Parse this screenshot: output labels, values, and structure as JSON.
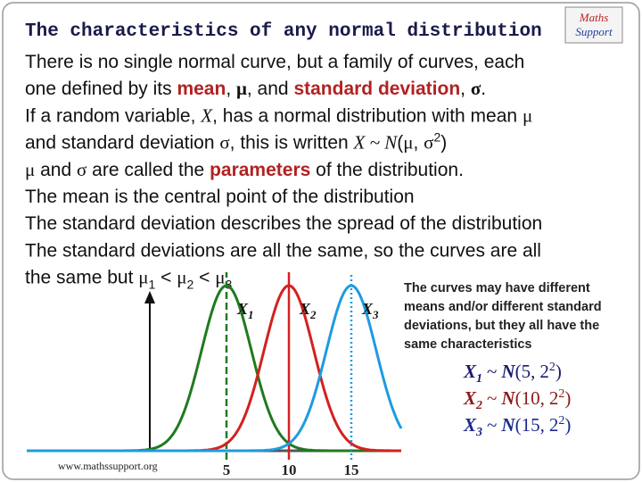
{
  "title": "The characteristics of any normal distribution",
  "logo": [
    "Maths",
    "Support"
  ],
  "lines": [
    [
      {
        "text": "There is no single normal curve, but a family of curves, each",
        "style": "plain"
      }
    ],
    [
      {
        "text": "one defined by its ",
        "style": "plain"
      },
      {
        "text": "mean",
        "style": "red"
      },
      {
        "text": ", ",
        "style": "plain"
      },
      {
        "text": "μ",
        "style": "symbold"
      },
      {
        "text": ", and ",
        "style": "plain"
      },
      {
        "text": "standard deviation",
        "style": "red"
      },
      {
        "text": ", ",
        "style": "plain"
      },
      {
        "text": "σ",
        "style": "symbold"
      },
      {
        "text": ".",
        "style": "plain"
      }
    ],
    [
      {
        "text": "If a random variable, ",
        "style": "plain"
      },
      {
        "text": "X",
        "style": "var"
      },
      {
        "text": ", has a normal distribution with mean ",
        "style": "plain"
      },
      {
        "text": "μ",
        "style": "sym"
      }
    ],
    [
      {
        "text": "and standard deviation ",
        "style": "plain"
      },
      {
        "text": "σ",
        "style": "sym"
      },
      {
        "text": ", this is written ",
        "style": "plain"
      },
      {
        "text": "X ~ N",
        "style": "var"
      },
      {
        "text": "(",
        "style": "plain"
      },
      {
        "text": "μ",
        "style": "sym"
      },
      {
        "text": ", ",
        "style": "plain"
      },
      {
        "text": "σ",
        "style": "sym"
      },
      {
        "text": "2",
        "style": "sup"
      },
      {
        "text": ")",
        "style": "plain"
      }
    ],
    [
      {
        "text": "μ",
        "style": "sym"
      },
      {
        "text": " and ",
        "style": "plain"
      },
      {
        "text": "σ",
        "style": "sym"
      },
      {
        "text": " are called the ",
        "style": "plain"
      },
      {
        "text": "parameters",
        "style": "red"
      },
      {
        "text": " of the distribution.",
        "style": "plain"
      }
    ],
    [
      {
        "text": "The mean is the central point of the distribution",
        "style": "plain"
      }
    ],
    [
      {
        "text": "The standard deviation describes the spread of the distribution",
        "style": "plain"
      }
    ],
    [
      {
        "text": "The standard deviations are all the same, so the curves are all",
        "style": "plain"
      }
    ],
    [
      {
        "text": "the same but ",
        "style": "plain"
      },
      {
        "text": "μ",
        "style": "sym"
      },
      {
        "text": "1",
        "style": "sub"
      },
      {
        "text": " < ",
        "style": "plain"
      },
      {
        "text": "μ",
        "style": "sym"
      },
      {
        "text": "2",
        "style": "sub"
      },
      {
        "text": " < ",
        "style": "plain"
      },
      {
        "text": "μ",
        "style": "sym"
      },
      {
        "text": "3",
        "style": "sub"
      }
    ]
  ],
  "note": [
    "The curves may have different",
    "means and/or different standard",
    "deviations, but they all have the",
    "same characteristics"
  ],
  "notation": {
    "tilde": "~",
    "dist": "N",
    "open": "(",
    "sep": ",",
    "close": ")"
  },
  "graph": {
    "xlim": [
      -11,
      19
    ],
    "xticks": [
      5,
      10,
      15
    ],
    "curves": [
      {
        "name": "X",
        "index": "1",
        "mean": 5,
        "sd": 2,
        "power": "2",
        "color": "#1f7a1f",
        "line_style": "dashed",
        "text_color": "#1a1a6e"
      },
      {
        "name": "X",
        "index": "2",
        "mean": 10,
        "sd": 2,
        "power": "2",
        "color": "#d42020",
        "line_style": "solid",
        "text_color": "#8b1a1a"
      },
      {
        "name": "X",
        "index": "3",
        "mean": 15,
        "sd": 2,
        "power": "2",
        "color": "#1e9be0",
        "line_style": "dotted",
        "text_color": "#1a2a8b"
      }
    ]
  },
  "footer": "www.mathssupport.org"
}
